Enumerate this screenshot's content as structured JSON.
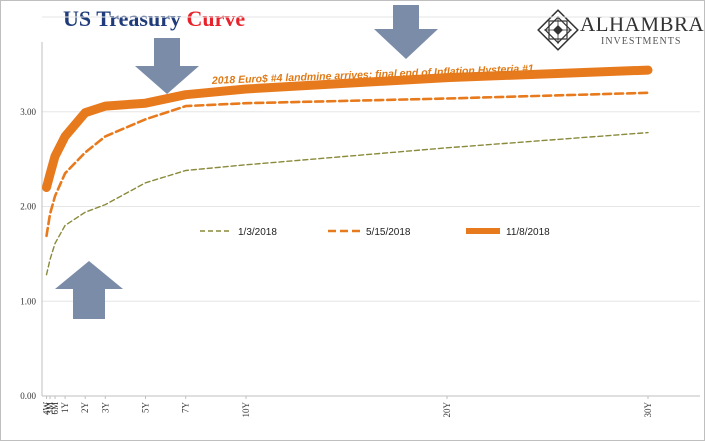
{
  "header": {
    "title_part1": "US Treasury",
    "title_part2": "Curve"
  },
  "logo": {
    "name": "ALHAMBRA",
    "sub": "INVESTMENTS"
  },
  "colors": {
    "olive": "#8a8a3c",
    "orange": "#e87a1e",
    "arrow": "#7b8ca8",
    "grid": "#e6e6e6",
    "annotation": "#e07a17"
  },
  "chart_data": {
    "type": "line",
    "title": "US Treasury Curve",
    "categories": [
      "4W",
      "3M",
      "6M",
      "1Y",
      "2Y",
      "3Y",
      "5Y",
      "7Y",
      "10Y",
      "20Y",
      "30Y"
    ],
    "x_years": [
      0.077,
      0.25,
      0.5,
      1,
      2,
      3,
      5,
      7,
      10,
      20,
      30
    ],
    "series": [
      {
        "name": "1/3/2018",
        "style": "dashed-thin",
        "values": [
          1.28,
          1.44,
          1.61,
          1.8,
          1.94,
          2.02,
          2.25,
          2.38,
          2.44,
          2.62,
          2.78
        ]
      },
      {
        "name": "5/15/2018",
        "style": "dashed-thick",
        "values": [
          1.69,
          1.92,
          2.11,
          2.35,
          2.57,
          2.74,
          2.92,
          3.06,
          3.09,
          3.14,
          3.2
        ]
      },
      {
        "name": "11/8/2018",
        "style": "solid-heavy",
        "values": [
          2.2,
          2.34,
          2.53,
          2.74,
          2.99,
          3.06,
          3.09,
          3.18,
          3.24,
          3.36,
          3.44
        ]
      }
    ],
    "ylim": [
      0,
      4
    ],
    "yticks": [
      "0.00",
      "1.00",
      "2.00",
      "3.00"
    ],
    "grid": true,
    "legend_placement": "center",
    "annotation": "2018 Euro$ #4 landmine arrives; final end of Inflation Hysteria #1"
  }
}
